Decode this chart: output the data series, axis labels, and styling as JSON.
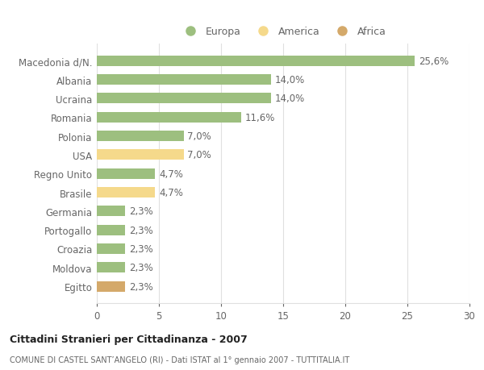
{
  "categories": [
    "Egitto",
    "Moldova",
    "Croazia",
    "Portogallo",
    "Germania",
    "Brasile",
    "Regno Unito",
    "USA",
    "Polonia",
    "Romania",
    "Ucraina",
    "Albania",
    "Macedonia d/N."
  ],
  "values": [
    2.3,
    2.3,
    2.3,
    2.3,
    2.3,
    4.7,
    4.7,
    7.0,
    7.0,
    11.6,
    14.0,
    14.0,
    25.6
  ],
  "colors": [
    "#D4A96A",
    "#9DBF7F",
    "#9DBF7F",
    "#9DBF7F",
    "#9DBF7F",
    "#F5D98B",
    "#9DBF7F",
    "#F5D98B",
    "#9DBF7F",
    "#9DBF7F",
    "#9DBF7F",
    "#9DBF7F",
    "#9DBF7F"
  ],
  "color_europa": "#9DBF7F",
  "color_america": "#F5D98B",
  "color_africa": "#D4A96A",
  "title": "Cittadini Stranieri per Cittadinanza - 2007",
  "subtitle": "COMUNE DI CASTEL SANT’ANGELO (RI) - Dati ISTAT al 1° gennaio 2007 - TUTTITALIA.IT",
  "xlim": [
    0,
    30
  ],
  "xticks": [
    0,
    5,
    10,
    15,
    20,
    25,
    30
  ],
  "background_color": "#FFFFFF",
  "bar_height": 0.55,
  "grid_color": "#E0E0E0",
  "text_color": "#666666",
  "label_fontsize": 8.5,
  "tick_fontsize": 8.5
}
